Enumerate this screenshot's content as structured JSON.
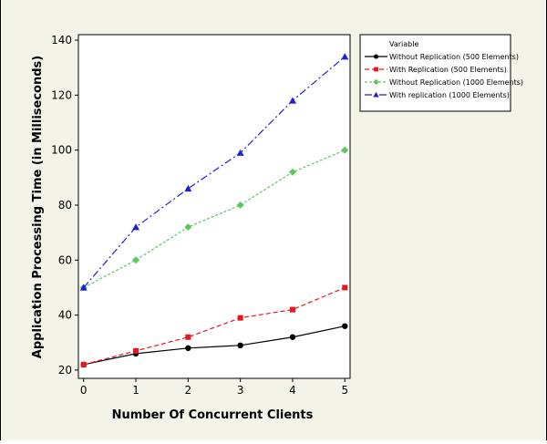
{
  "chart_data": {
    "type": "line",
    "title": "",
    "xlabel": "Number Of Concurrent Clients",
    "ylabel": "Application Processing Time (in Milliseconds)",
    "x": [
      0,
      1,
      2,
      3,
      4,
      5
    ],
    "xticks": [
      "0",
      "1",
      "2",
      "3",
      "4",
      "5"
    ],
    "xlim": [
      -0.1,
      5.1
    ],
    "yticks": [
      "20",
      "40",
      "60",
      "80",
      "100",
      "120",
      "140"
    ],
    "ylim": [
      17,
      142
    ],
    "grid": false,
    "legend": {
      "title": "Variable",
      "placement": "right"
    },
    "series": [
      {
        "name": "Without Replication (500 Elements)",
        "values": [
          22,
          26,
          28,
          29,
          32,
          36
        ],
        "color": "#000000",
        "marker": "circle",
        "dash": "solid"
      },
      {
        "name": "With Replication (500 Elements)",
        "values": [
          22,
          27,
          32,
          39,
          42,
          50
        ],
        "color": "#e8151b",
        "marker": "square",
        "dash": "dashed"
      },
      {
        "name": "Without Replication (1000 Elements)",
        "values": [
          50,
          60,
          72,
          80,
          92,
          100
        ],
        "color": "#5cc85c",
        "marker": "diamond",
        "dash": "dotted"
      },
      {
        "name": "With replication (1000 Elements)",
        "values": [
          50,
          72,
          86,
          99,
          118,
          134
        ],
        "color": "#1f1fdd",
        "marker": "triangle",
        "dash": "dashdot"
      }
    ]
  }
}
